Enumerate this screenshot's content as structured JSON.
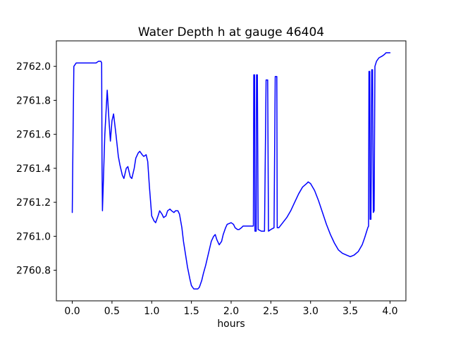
{
  "figure": {
    "background": "#ffffff"
  },
  "chart_data": {
    "type": "line",
    "title": "Water Depth h at gauge 46404",
    "xlabel": "hours",
    "ylabel": "",
    "line_color": "#0000ff",
    "line_width": 1.5,
    "grid": false,
    "legend": "none",
    "xlim": [
      -0.2,
      4.2
    ],
    "ylim": [
      2760.62,
      2762.15
    ],
    "xticks": [
      0.0,
      0.5,
      1.0,
      1.5,
      2.0,
      2.5,
      3.0,
      3.5,
      4.0
    ],
    "yticks": [
      2760.8,
      2761.0,
      2761.2,
      2761.4,
      2761.6,
      2761.8,
      2762.0
    ],
    "x": [
      0.0,
      0.01,
      0.02,
      0.05,
      0.1,
      0.15,
      0.2,
      0.25,
      0.3,
      0.33,
      0.36,
      0.37,
      0.375,
      0.38,
      0.41,
      0.44,
      0.46,
      0.48,
      0.5,
      0.52,
      0.55,
      0.58,
      0.6,
      0.63,
      0.65,
      0.68,
      0.7,
      0.73,
      0.75,
      0.78,
      0.8,
      0.83,
      0.85,
      0.88,
      0.9,
      0.93,
      0.95,
      0.97,
      1.0,
      1.03,
      1.05,
      1.08,
      1.1,
      1.13,
      1.15,
      1.18,
      1.2,
      1.23,
      1.25,
      1.28,
      1.3,
      1.33,
      1.35,
      1.38,
      1.4,
      1.43,
      1.45,
      1.48,
      1.5,
      1.53,
      1.55,
      1.58,
      1.6,
      1.63,
      1.65,
      1.68,
      1.7,
      1.73,
      1.75,
      1.78,
      1.8,
      1.82,
      1.85,
      1.88,
      1.9,
      1.93,
      1.95,
      2.0,
      2.03,
      2.05,
      2.08,
      2.1,
      2.13,
      2.15,
      2.2,
      2.25,
      2.28,
      2.285,
      2.295,
      2.3,
      2.315,
      2.32,
      2.33,
      2.34,
      2.38,
      2.42,
      2.44,
      2.46,
      2.47,
      2.5,
      2.54,
      2.555,
      2.575,
      2.58,
      2.6,
      2.65,
      2.7,
      2.75,
      2.8,
      2.85,
      2.9,
      2.95,
      2.97,
      3.0,
      3.05,
      3.1,
      3.15,
      3.2,
      3.25,
      3.3,
      3.35,
      3.4,
      3.45,
      3.5,
      3.55,
      3.6,
      3.65,
      3.68,
      3.7,
      3.72,
      3.73,
      3.735,
      3.745,
      3.75,
      3.76,
      3.77,
      3.78,
      3.79,
      3.8,
      3.81,
      3.83,
      3.86,
      3.9,
      3.93,
      3.95,
      4.0
    ],
    "y": [
      2761.14,
      2761.6,
      2762.0,
      2762.02,
      2762.02,
      2762.02,
      2762.02,
      2762.02,
      2762.02,
      2762.03,
      2762.03,
      2762.02,
      2761.4,
      2761.15,
      2761.6,
      2761.86,
      2761.7,
      2761.56,
      2761.68,
      2761.72,
      2761.6,
      2761.47,
      2761.42,
      2761.36,
      2761.34,
      2761.4,
      2761.41,
      2761.35,
      2761.34,
      2761.4,
      2761.46,
      2761.49,
      2761.5,
      2761.48,
      2761.47,
      2761.48,
      2761.44,
      2761.3,
      2761.12,
      2761.09,
      2761.08,
      2761.12,
      2761.15,
      2761.13,
      2761.11,
      2761.12,
      2761.15,
      2761.16,
      2761.15,
      2761.14,
      2761.15,
      2761.15,
      2761.13,
      2761.05,
      2760.97,
      2760.88,
      2760.82,
      2760.75,
      2760.71,
      2760.69,
      2760.69,
      2760.69,
      2760.7,
      2760.74,
      2760.78,
      2760.83,
      2760.87,
      2760.93,
      2760.97,
      2761.0,
      2761.01,
      2760.98,
      2760.95,
      2760.97,
      2761.01,
      2761.05,
      2761.07,
      2761.08,
      2761.07,
      2761.05,
      2761.04,
      2761.04,
      2761.05,
      2761.06,
      2761.06,
      2761.06,
      2761.06,
      2761.95,
      2761.95,
      2761.03,
      2761.03,
      2761.95,
      2761.95,
      2761.04,
      2761.03,
      2761.03,
      2761.92,
      2761.92,
      2761.03,
      2761.04,
      2761.05,
      2761.94,
      2761.94,
      2761.05,
      2761.05,
      2761.08,
      2761.11,
      2761.15,
      2761.2,
      2761.25,
      2761.29,
      2761.31,
      2761.32,
      2761.31,
      2761.27,
      2761.21,
      2761.14,
      2761.07,
      2761.01,
      2760.96,
      2760.92,
      2760.9,
      2760.89,
      2760.88,
      2760.89,
      2760.91,
      2760.95,
      2760.99,
      2761.02,
      2761.05,
      2761.06,
      2761.97,
      2761.97,
      2761.1,
      2761.1,
      2761.98,
      2761.98,
      2761.14,
      2761.15,
      2762.0,
      2762.03,
      2762.05,
      2762.06,
      2762.07,
      2762.08,
      2762.08
    ]
  }
}
